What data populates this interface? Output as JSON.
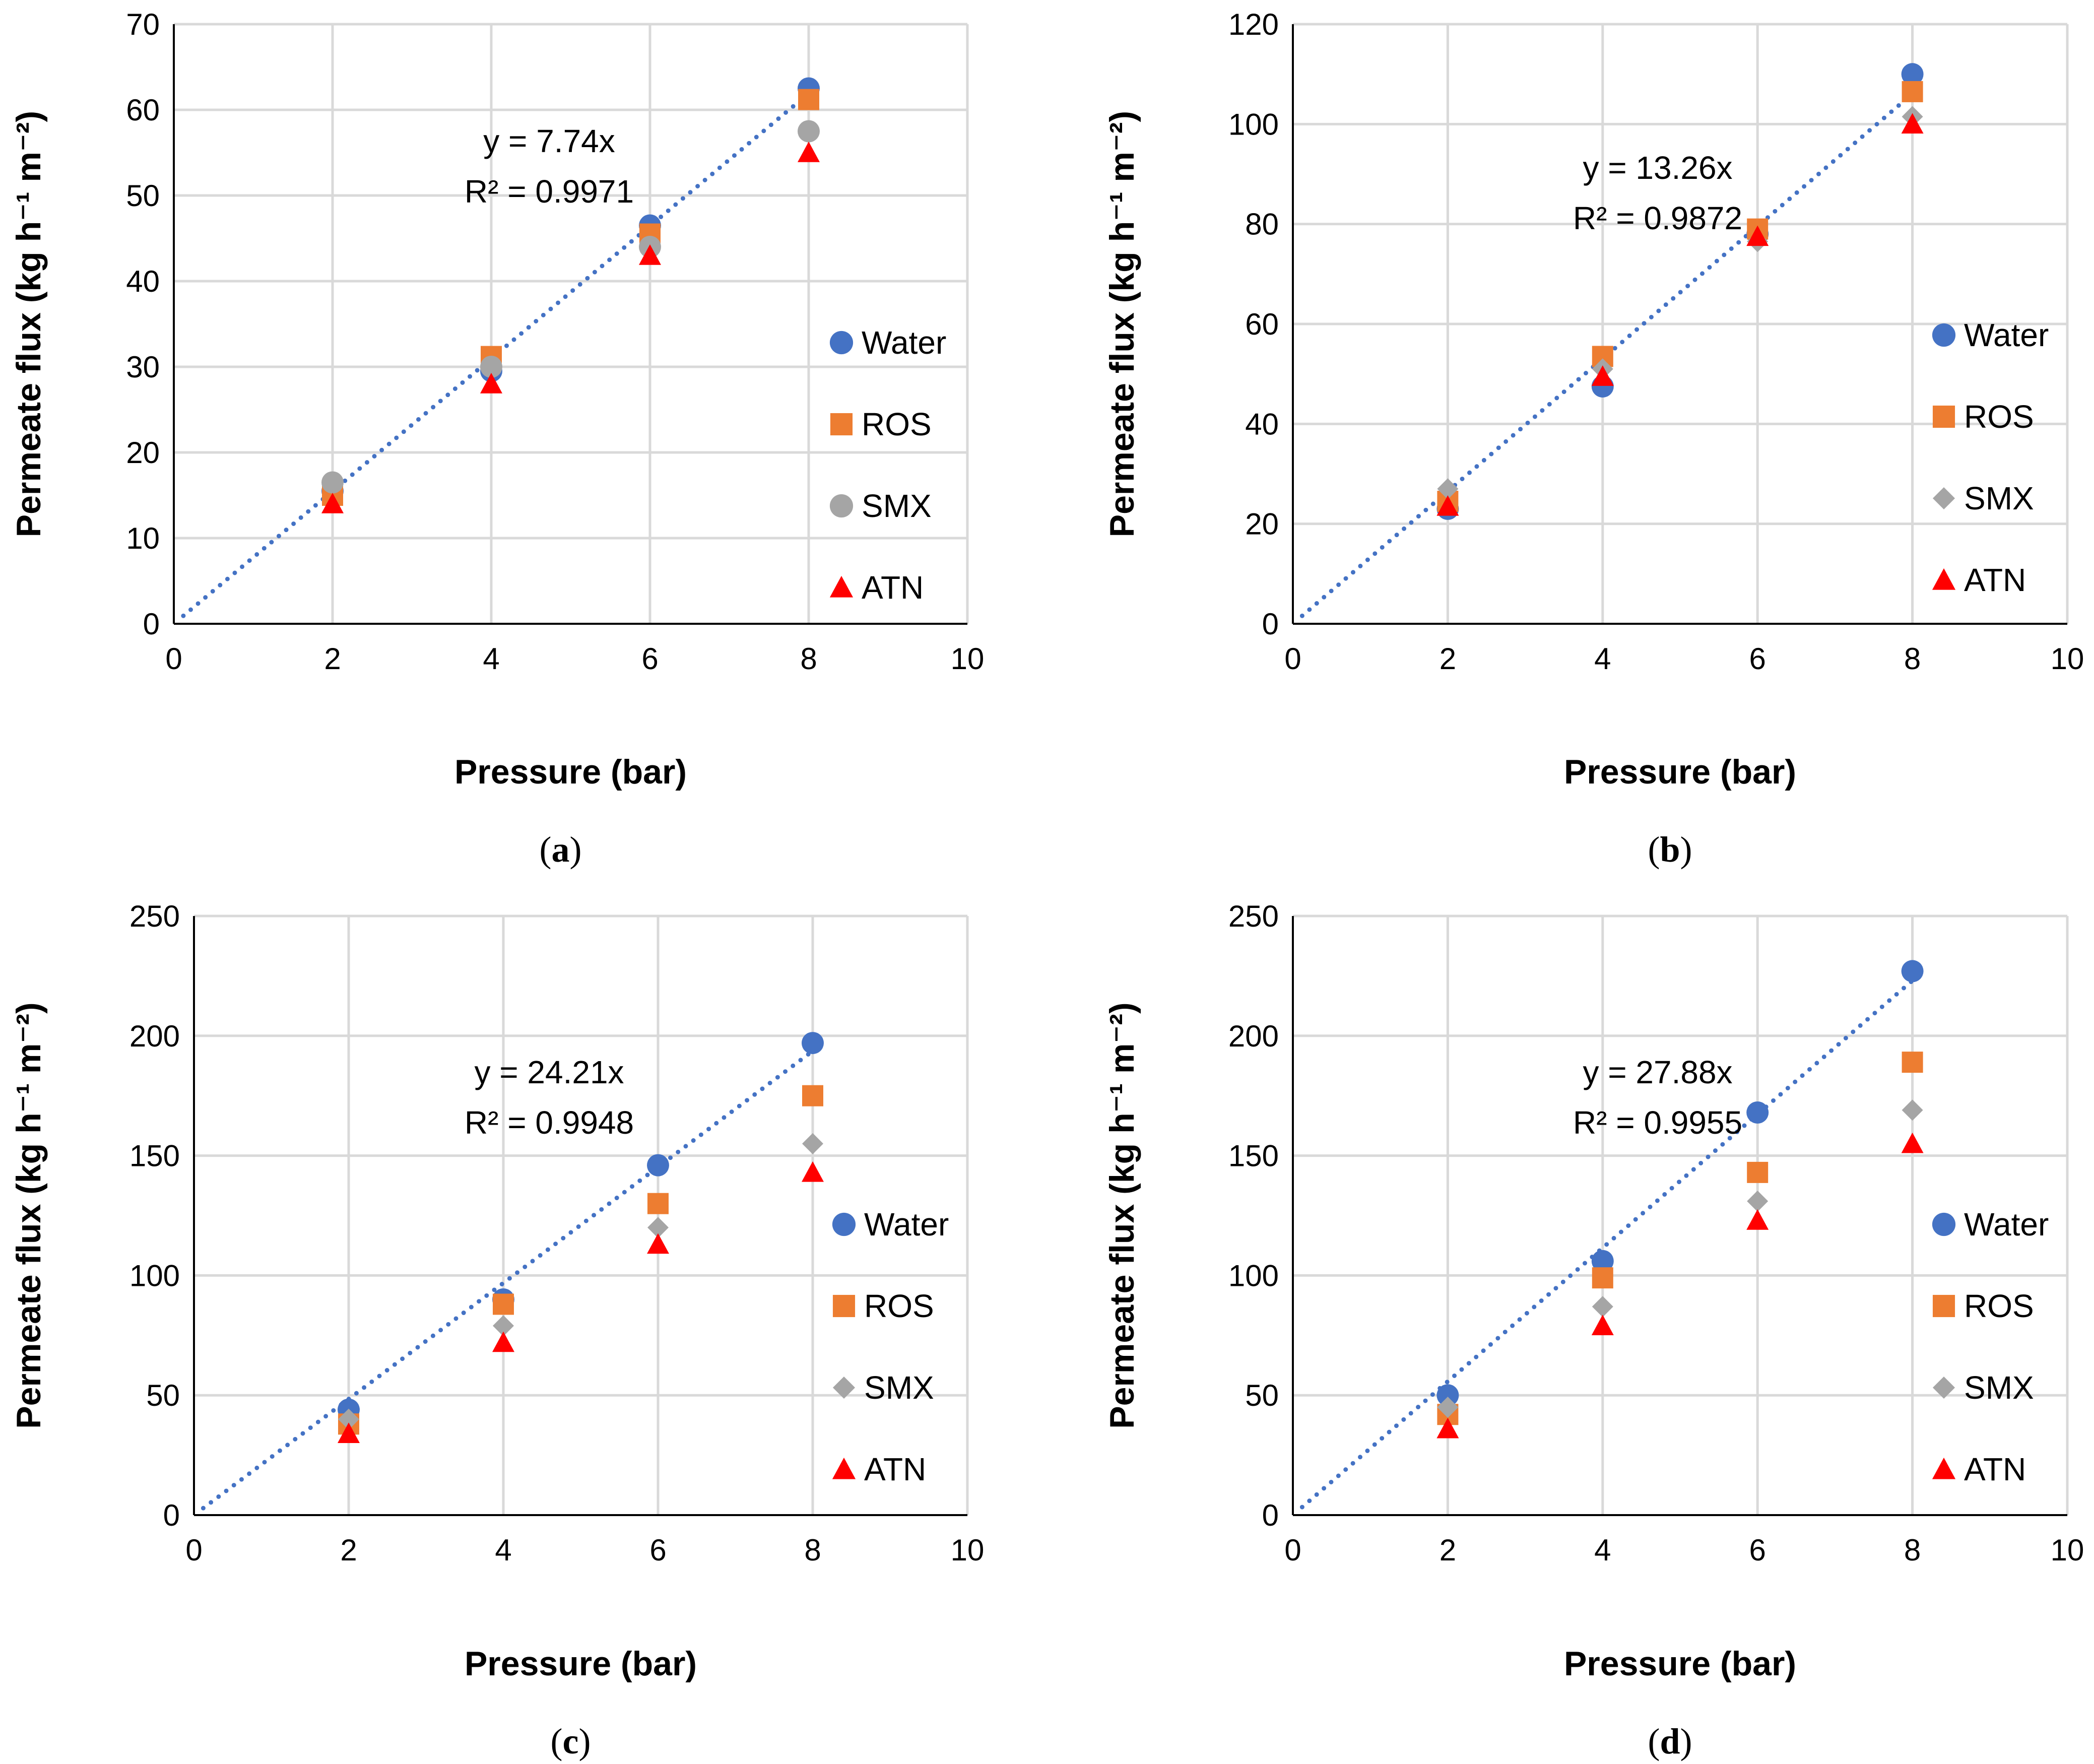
{
  "colors": {
    "water": "#4472C4",
    "ros": "#ED7D31",
    "smx": "#A5A5A5",
    "atn": "#FF0000",
    "trend": "#4472C4",
    "grid": "#D9D9D9"
  },
  "chart_data": [
    {
      "type": "scatter",
      "panel": "a",
      "caption": {
        "open": "(",
        "letter": "a",
        "close": ")"
      },
      "xlabel": "Pressure (bar)",
      "ylabel": "Permeate flux (kg h⁻¹ m⁻²)",
      "xlim": [
        0,
        10
      ],
      "ylim": [
        0,
        70
      ],
      "xticks": [
        0,
        2,
        4,
        6,
        8,
        10
      ],
      "yticks": [
        0,
        10,
        20,
        30,
        40,
        50,
        60,
        70
      ],
      "grid": true,
      "legend_position": "right",
      "series": [
        {
          "name": "Water",
          "marker": "circle",
          "x": [
            2,
            4,
            6,
            8
          ],
          "y": [
            15.5,
            29.5,
            46.5,
            62.5
          ]
        },
        {
          "name": "ROS",
          "marker": "square",
          "x": [
            2,
            4,
            6,
            8
          ],
          "y": [
            15,
            31.2,
            45.5,
            61.2
          ]
        },
        {
          "name": "SMX",
          "marker": "circle",
          "x": [
            2,
            4,
            6,
            8
          ],
          "y": [
            16.5,
            30,
            44,
            57.5
          ]
        },
        {
          "name": "ATN",
          "marker": "triangle",
          "x": [
            2,
            4,
            6,
            8
          ],
          "y": [
            14,
            28,
            43,
            55
          ]
        }
      ],
      "trendline": {
        "slope": 7.74,
        "x_range": [
          0,
          8
        ],
        "equation": "y = 7.74x",
        "r2": "R² = 0.9971"
      }
    },
    {
      "type": "scatter",
      "panel": "b",
      "caption": {
        "open": "(",
        "letter": "b",
        "close": ")"
      },
      "xlabel": "Pressure (bar)",
      "ylabel": "Permeate flux (kg h⁻¹ m⁻²)",
      "xlim": [
        0,
        10
      ],
      "ylim": [
        0,
        120
      ],
      "xticks": [
        0,
        2,
        4,
        6,
        8,
        10
      ],
      "yticks": [
        0,
        20,
        40,
        60,
        80,
        100,
        120
      ],
      "grid": true,
      "legend_position": "right",
      "series": [
        {
          "name": "Water",
          "marker": "circle",
          "x": [
            2,
            4,
            6,
            8
          ],
          "y": [
            23,
            47.5,
            78,
            110
          ]
        },
        {
          "name": "ROS",
          "marker": "square",
          "x": [
            2,
            4,
            6,
            8
          ],
          "y": [
            24.5,
            53.5,
            79,
            106.5
          ]
        },
        {
          "name": "SMX",
          "marker": "diamond",
          "x": [
            2,
            4,
            6,
            8
          ],
          "y": [
            27,
            51,
            76.5,
            101.5
          ]
        },
        {
          "name": "ATN",
          "marker": "triangle",
          "x": [
            2,
            4,
            6,
            8
          ],
          "y": [
            23.5,
            49.5,
            77.5,
            100
          ]
        }
      ],
      "trendline": {
        "slope": 13.26,
        "x_range": [
          0,
          8
        ],
        "equation": "y = 13.26x",
        "r2": "R² = 0.9872"
      }
    },
    {
      "type": "scatter",
      "panel": "c",
      "caption": {
        "open": "(",
        "letter": "c",
        "close": ")"
      },
      "xlabel": "Pressure (bar)",
      "ylabel": "Permeate flux (kg h⁻¹ m⁻²)",
      "xlim": [
        0,
        10
      ],
      "ylim": [
        0,
        250
      ],
      "xticks": [
        0,
        2,
        4,
        6,
        8,
        10
      ],
      "yticks": [
        0,
        50,
        100,
        150,
        200,
        250
      ],
      "grid": true,
      "legend_position": "right",
      "series": [
        {
          "name": "Water",
          "marker": "circle",
          "x": [
            2,
            4,
            6,
            8
          ],
          "y": [
            44,
            90,
            146,
            197
          ]
        },
        {
          "name": "ROS",
          "marker": "square",
          "x": [
            2,
            4,
            6,
            8
          ],
          "y": [
            38,
            88,
            130,
            175
          ]
        },
        {
          "name": "SMX",
          "marker": "diamond",
          "x": [
            2,
            4,
            6,
            8
          ],
          "y": [
            40,
            79,
            120,
            155
          ]
        },
        {
          "name": "ATN",
          "marker": "triangle",
          "x": [
            2,
            4,
            6,
            8
          ],
          "y": [
            34,
            72,
            113,
            143
          ]
        }
      ],
      "trendline": {
        "slope": 24.21,
        "x_range": [
          0,
          8
        ],
        "equation": "y = 24.21x",
        "r2": "R² = 0.9948"
      }
    },
    {
      "type": "scatter",
      "panel": "d",
      "caption": {
        "open": "(",
        "letter": "d",
        "close": ")"
      },
      "xlabel": "Pressure (bar)",
      "ylabel": "Permeate flux (kg h⁻¹ m⁻²)",
      "xlim": [
        0,
        10
      ],
      "ylim": [
        0,
        250
      ],
      "xticks": [
        0,
        2,
        4,
        6,
        8,
        10
      ],
      "yticks": [
        0,
        50,
        100,
        150,
        200,
        250
      ],
      "grid": true,
      "legend_position": "right",
      "series": [
        {
          "name": "Water",
          "marker": "circle",
          "x": [
            2,
            4,
            6,
            8
          ],
          "y": [
            50,
            106,
            168,
            227
          ]
        },
        {
          "name": "ROS",
          "marker": "square",
          "x": [
            2,
            4,
            6,
            8
          ],
          "y": [
            42,
            99,
            143,
            189
          ]
        },
        {
          "name": "SMX",
          "marker": "diamond",
          "x": [
            2,
            4,
            6,
            8
          ],
          "y": [
            45,
            87,
            131,
            169
          ]
        },
        {
          "name": "ATN",
          "marker": "triangle",
          "x": [
            2,
            4,
            6,
            8
          ],
          "y": [
            36,
            79,
            123,
            155
          ]
        }
      ],
      "trendline": {
        "slope": 27.88,
        "x_range": [
          0,
          8
        ],
        "equation": "y = 27.88x",
        "r2": "R² = 0.9955"
      }
    }
  ]
}
